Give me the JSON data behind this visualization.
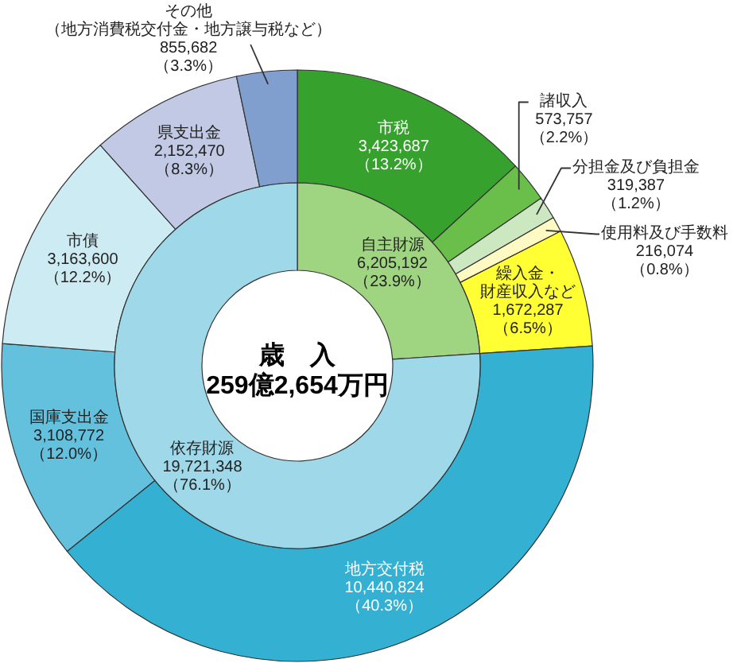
{
  "chart_data": [
    {
      "type": "donut",
      "categories": [
        "市税",
        "諸収入",
        "分担金及び負担金",
        "使用料及び手数料",
        "繰入金・財産収入など",
        "地方交付税",
        "国庫支出金",
        "市債",
        "県支出金",
        "その他（地方消費税交付金・地方譲与税など）"
      ],
      "values": [
        3423687,
        573757,
        319387,
        216074,
        1672287,
        10440824,
        3108772,
        3163600,
        2152470,
        855682
      ],
      "value_labels": [
        "3,423,687\n（13.2%）",
        "573,757\n（2.2%）",
        "319,387\n（1.2%）",
        "216,074\n（0.8%）",
        "1,672,287\n（6.5%）",
        "10,440,824\n（40.3%）",
        "3,108,772\n（12.0%）",
        "3,163,600\n（12.2%）",
        "2,152,470\n（8.3%）",
        "855,682\n（3.3%）"
      ],
      "colors": [
        "#36a12d",
        "#6abf4b",
        "#cce8c0",
        "#fff9c4",
        "#ffff33",
        "#34b0d2",
        "#63c1dd",
        "#cdebf3",
        "#c1c9e4",
        "#819fce"
      ]
    },
    {
      "type": "donut",
      "title": "歳　入",
      "subtitle": "259億2,654万円",
      "categories": [
        "自主財源",
        "依存財源"
      ],
      "values": [
        6205192,
        19721348
      ],
      "value_labels": [
        "6,205,192\n（23.9%）",
        "19,721,348\n（76.1%）"
      ],
      "colors": [
        "#9fd581",
        "#9fd8e9"
      ]
    }
  ]
}
